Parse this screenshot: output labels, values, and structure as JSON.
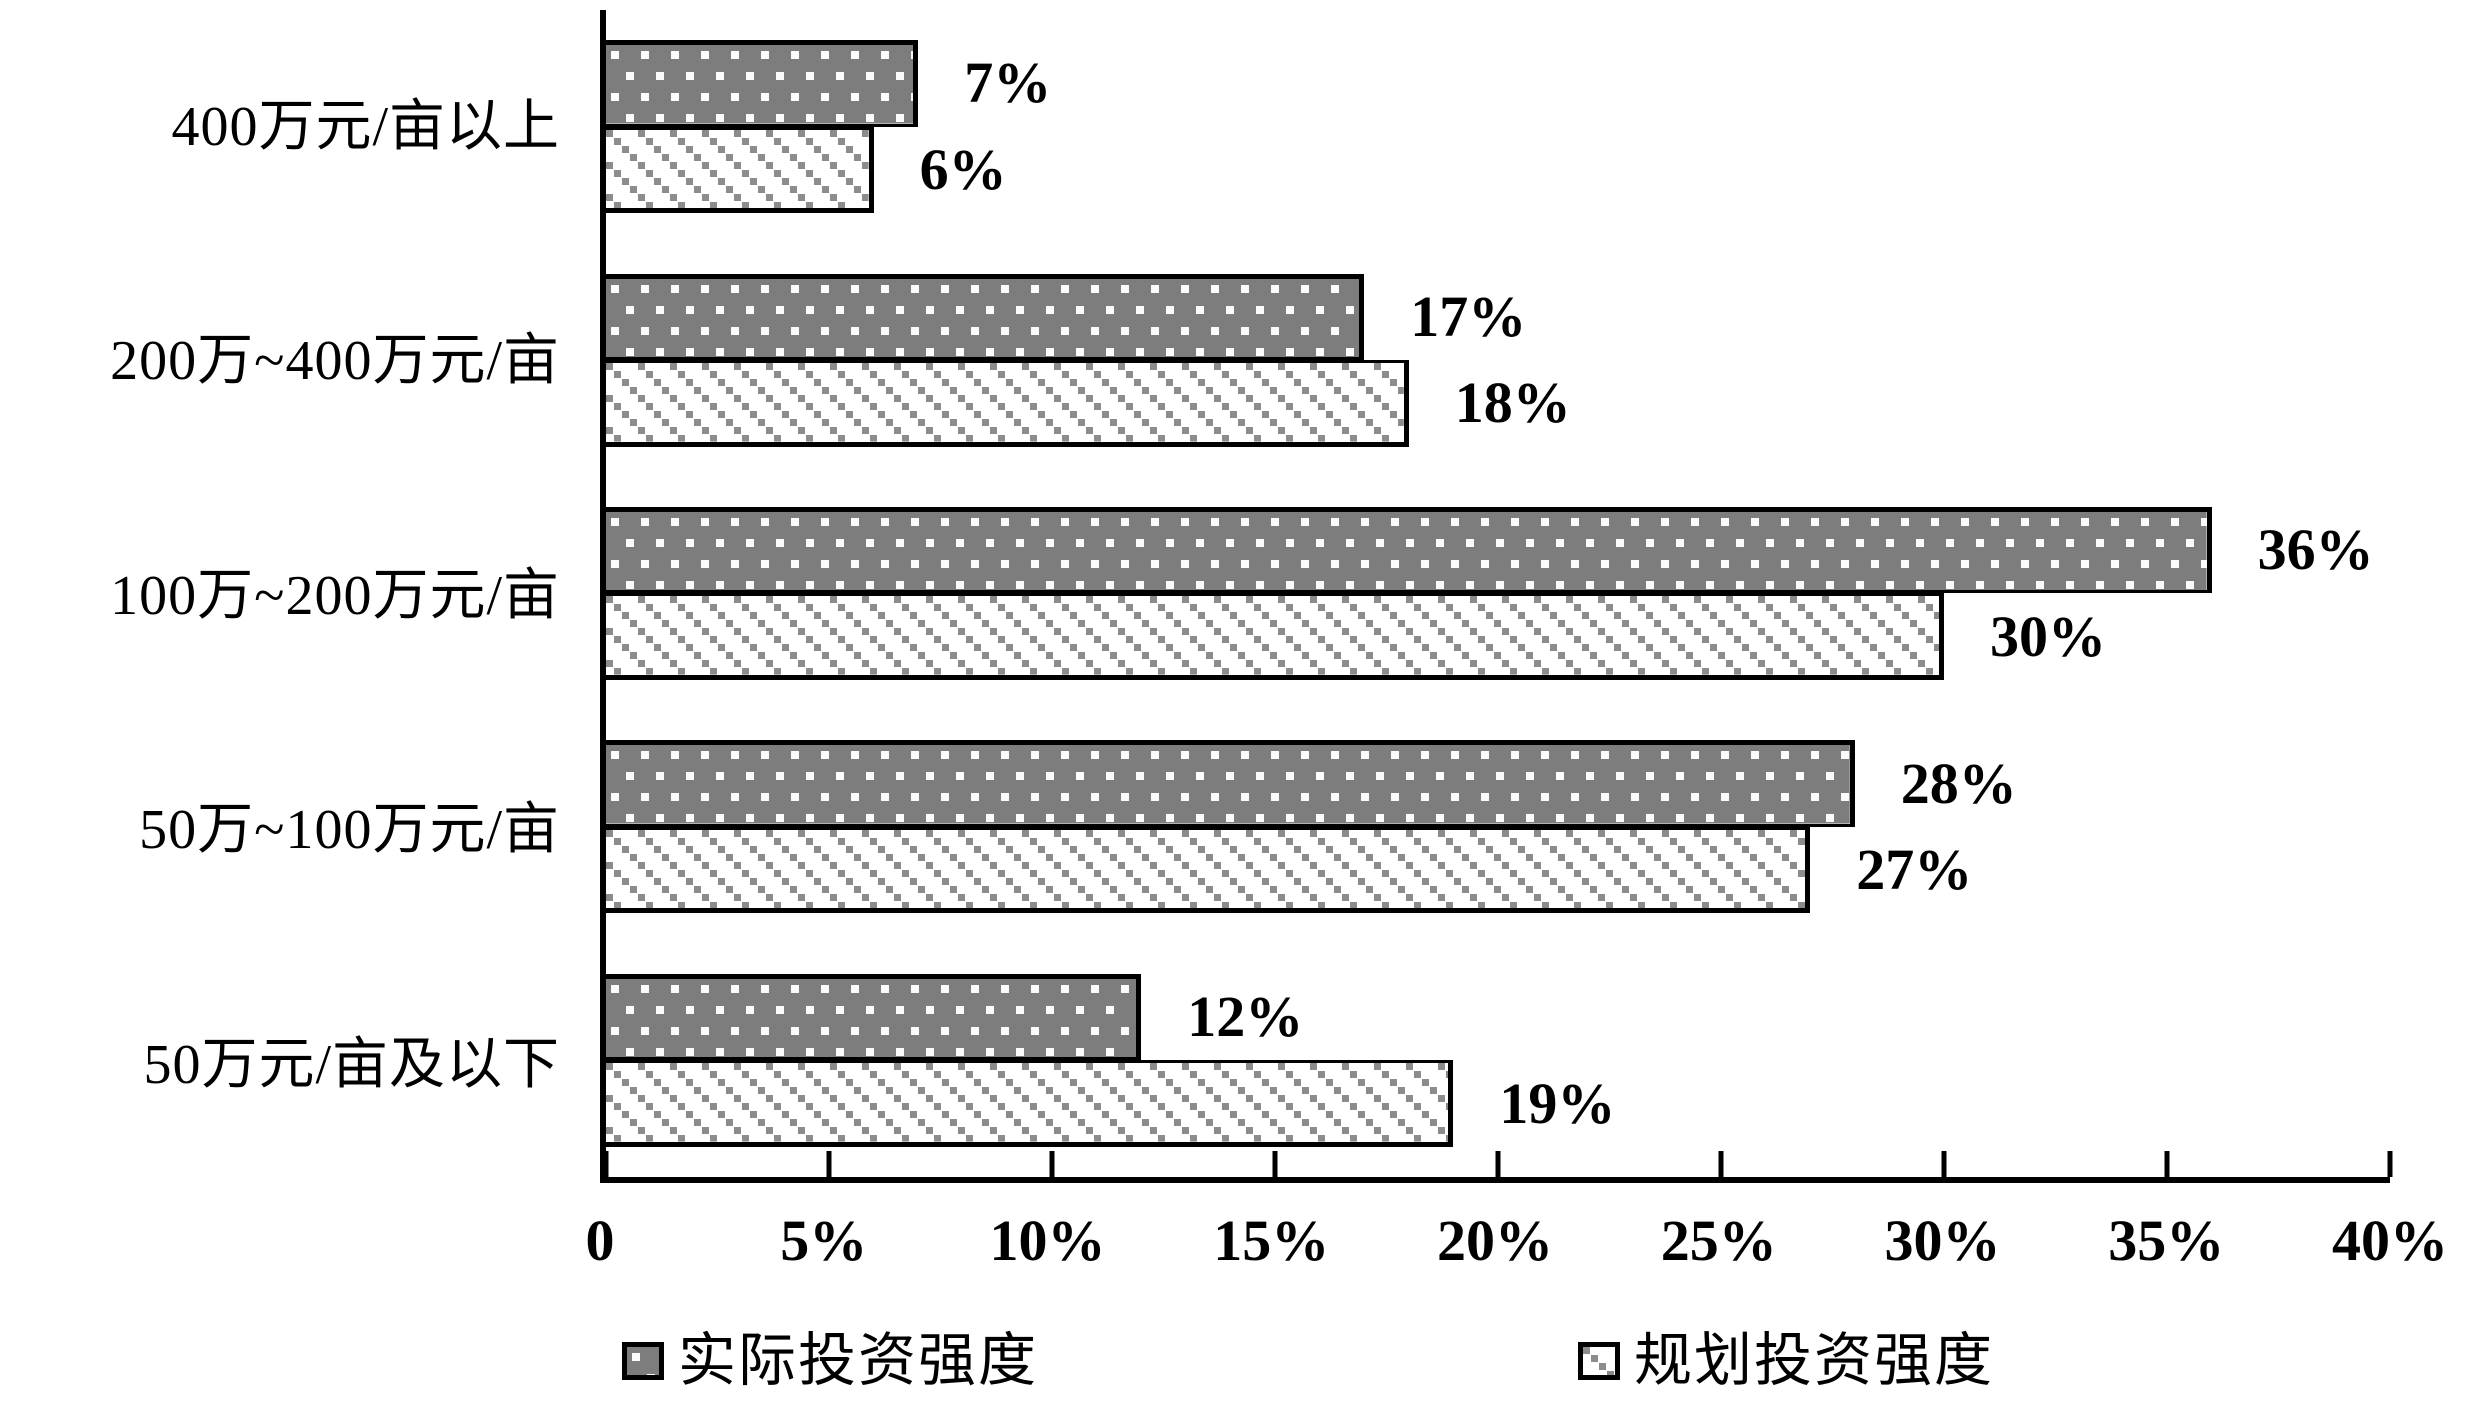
{
  "figure": {
    "background": "#ffffff",
    "ink": "#000000",
    "bar_fill_gray": "#7d7d7d",
    "hatch_gray": "#8c8c8c"
  },
  "chart_data": {
    "type": "bar",
    "orientation": "horizontal",
    "title": "",
    "xlabel": "",
    "ylabel": "",
    "grid": false,
    "categories": [
      "400万元/亩以上",
      "200万~400万元/亩",
      "100万~200万元/亩",
      "50万~100万元/亩",
      "50万元/亩及以下"
    ],
    "series": [
      {
        "name": "实际投资强度",
        "style": "gray-with-white-dots",
        "color": "#7d7d7d",
        "values": [
          7,
          17,
          36,
          28,
          12
        ],
        "value_labels": [
          "7%",
          "17%",
          "36%",
          "28%",
          "12%"
        ]
      },
      {
        "name": "规划投资强度",
        "style": "white-with-diagonal-dotted-hatch",
        "color": "#ffffff",
        "values": [
          6,
          18,
          30,
          27,
          19
        ],
        "value_labels": [
          "6%",
          "18%",
          "30%",
          "27%",
          "19%"
        ]
      }
    ],
    "x_axis": {
      "min": 0,
      "max": 40,
      "tick_step": 5,
      "tick_labels": [
        "0",
        "5%",
        "10%",
        "15%",
        "20%",
        "25%",
        "30%",
        "35%",
        "40%"
      ]
    },
    "legend": {
      "position": "bottom",
      "items": [
        "实际投资强度",
        "规划投资强度"
      ]
    }
  }
}
